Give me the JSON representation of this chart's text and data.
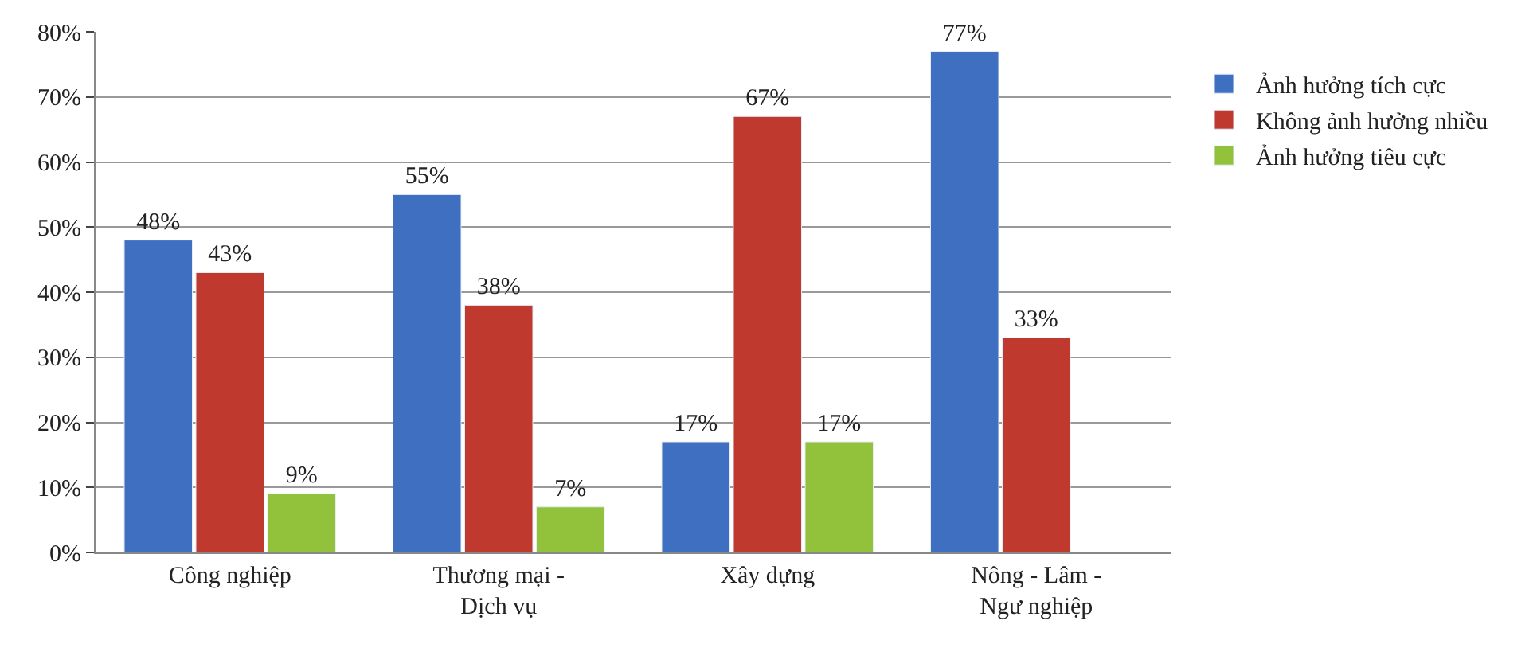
{
  "chart_data": {
    "type": "bar",
    "categories": [
      "Công nghiệp",
      "Thương mại - Dịch vụ",
      "Xây dựng",
      "Nông - Lâm - Ngư nghiệp"
    ],
    "series": [
      {
        "name": "Ảnh hưởng tích cực",
        "color": "#3f6fc0",
        "values": [
          48,
          55,
          17,
          77
        ],
        "value_labels": [
          "48%",
          "55%",
          "17%",
          "77%"
        ]
      },
      {
        "name": "Không ảnh hưởng nhiều",
        "color": "#c0392f",
        "values": [
          43,
          38,
          67,
          33
        ],
        "value_labels": [
          "43%",
          "38%",
          "67%",
          "33%"
        ]
      },
      {
        "name": "Ảnh hưởng tiêu cực",
        "color": "#92c23c",
        "values": [
          9,
          7,
          17,
          null
        ],
        "value_labels": [
          "9%",
          "7%",
          "17%",
          null
        ]
      }
    ],
    "ylim": [
      0,
      80
    ],
    "yticks": [
      {
        "value": 0,
        "label": "0%"
      },
      {
        "value": 10,
        "label": "10%"
      },
      {
        "value": 20,
        "label": "20%"
      },
      {
        "value": 30,
        "label": "30%"
      },
      {
        "value": 40,
        "label": "40%"
      },
      {
        "value": 50,
        "label": "50%"
      },
      {
        "value": 60,
        "label": "60%"
      },
      {
        "value": 70,
        "label": "70%"
      },
      {
        "value": 80,
        "label": "80%"
      }
    ],
    "grid": "y",
    "legend": "right"
  }
}
